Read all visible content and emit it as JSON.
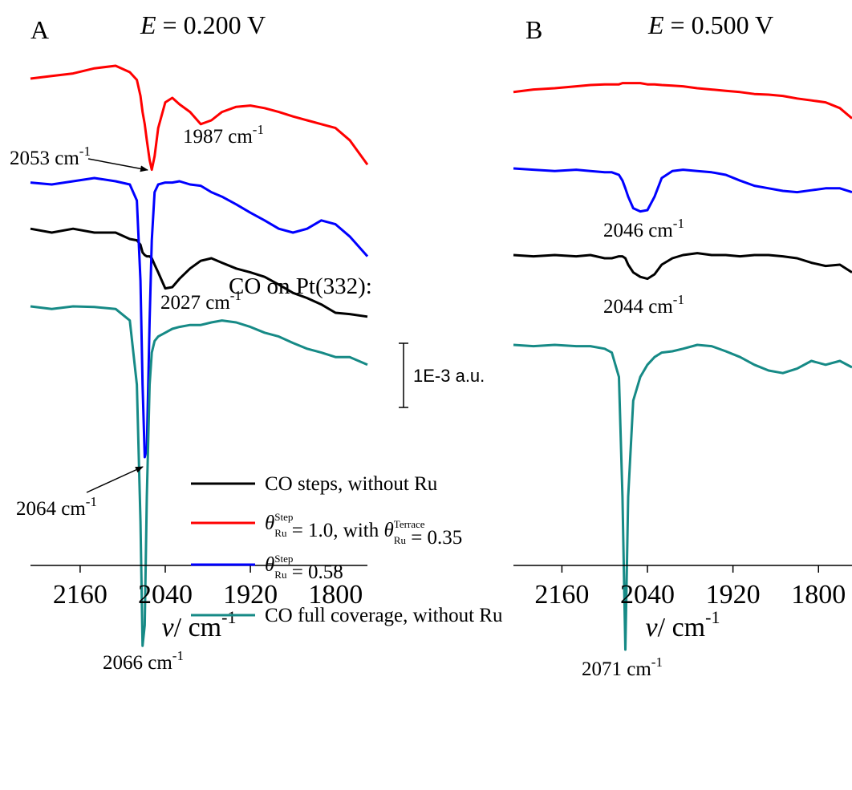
{
  "chart_data": [
    {
      "type": "line",
      "panel": "A",
      "title_symbol": "E",
      "title": "= 0.200 V",
      "x_label_symbol": "ν",
      "x_label": "/ cm",
      "x_label_sup": "-1",
      "x": [
        2230,
        2200,
        2170,
        2140,
        2110,
        2090,
        2080,
        2075,
        2072,
        2069,
        2066,
        2062,
        2059,
        2055,
        2050,
        2040,
        2030,
        2020,
        2005,
        1990,
        1975,
        1960,
        1940,
        1920,
        1900,
        1880,
        1860,
        1840,
        1820,
        1800,
        1780,
        1755
      ],
      "xlim": [
        2230,
        1755
      ],
      "xticks": [
        2160,
        2040,
        1920,
        1800
      ],
      "ylim": [
        0,
        0.0095
      ],
      "series": [
        {
          "name": "CO steps, without Ru",
          "color": "#000000",
          "values": [
            0.00656,
            0.0065,
            0.00656,
            0.0065,
            0.0065,
            0.0064,
            0.00638,
            0.00631,
            0.00619,
            0.00615,
            0.00613,
            0.00613,
            0.0061,
            0.006,
            0.00588,
            0.00563,
            0.00565,
            0.00578,
            0.00594,
            0.00606,
            0.0061,
            0.00603,
            0.00594,
            0.00588,
            0.00581,
            0.00569,
            0.00556,
            0.00548,
            0.00538,
            0.00525,
            0.00523,
            0.00519
          ]
        },
        {
          "name": "θ_Ru^Step = 1.0, with θ_Ru^Terrace = 0.35",
          "color": "#ff0000",
          "values": [
            0.0089,
            0.00894,
            0.00898,
            0.00906,
            0.0091,
            0.009,
            0.00888,
            0.00863,
            0.00838,
            0.00819,
            0.00794,
            0.00763,
            0.00748,
            0.00769,
            0.00813,
            0.00853,
            0.0086,
            0.0085,
            0.00838,
            0.00819,
            0.00825,
            0.00838,
            0.00846,
            0.00848,
            0.00844,
            0.00838,
            0.00831,
            0.00825,
            0.00819,
            0.00813,
            0.00794,
            0.00756
          ]
        },
        {
          "name": "θ_Ru^Step = 0.58",
          "color": "#0000ff",
          "values": [
            0.00728,
            0.00725,
            0.0073,
            0.00735,
            0.0073,
            0.00725,
            0.007,
            0.00575,
            0.00413,
            0.003,
            0.00313,
            0.00513,
            0.00638,
            0.00713,
            0.00725,
            0.00728,
            0.00728,
            0.0073,
            0.00725,
            0.00723,
            0.00713,
            0.00706,
            0.00694,
            0.00681,
            0.00669,
            0.00656,
            0.0065,
            0.00656,
            0.00669,
            0.00663,
            0.00644,
            0.00613
          ]
        },
        {
          "name": "CO full coverage, without Ru",
          "color": "#168a86",
          "values": [
            0.00535,
            0.00531,
            0.00535,
            0.00534,
            0.00531,
            0.00513,
            0.00413,
            0.002,
            6e-05,
            0.00038,
            0.00238,
            0.00413,
            0.00463,
            0.00481,
            0.00488,
            0.00494,
            0.005,
            0.00503,
            0.00506,
            0.00506,
            0.0051,
            0.00513,
            0.0051,
            0.00503,
            0.00494,
            0.00488,
            0.00478,
            0.00469,
            0.00463,
            0.00456,
            0.00456,
            0.00444
          ]
        }
      ],
      "annotations": [
        {
          "text": "1987 cm",
          "sup": "-1"
        },
        {
          "text": "2053 cm",
          "sup": "-1"
        },
        {
          "text": "2027 cm",
          "sup": "-1"
        },
        {
          "text": "2064 cm",
          "sup": "-1"
        },
        {
          "text": "2066 cm",
          "sup": "-1"
        }
      ]
    },
    {
      "type": "line",
      "panel": "B",
      "title_symbol": "E",
      "title": "= 0.500 V",
      "x_label_symbol": "ν",
      "x_label": "/ cm",
      "x_label_sup": "-1",
      "x": [
        2228,
        2200,
        2170,
        2140,
        2120,
        2100,
        2090,
        2080,
        2075,
        2071,
        2067,
        2060,
        2050,
        2040,
        2030,
        2020,
        2005,
        1990,
        1970,
        1950,
        1930,
        1910,
        1890,
        1870,
        1850,
        1830,
        1810,
        1790,
        1770,
        1753
      ],
      "xlim": [
        2228,
        1753
      ],
      "xticks": [
        2160,
        2040,
        1920,
        1800
      ],
      "ylim": [
        0,
        0.0095
      ],
      "series": [
        {
          "name": "CO steps, without Ru",
          "color": "#000000",
          "values": [
            0.00615,
            0.00613,
            0.00615,
            0.00613,
            0.00615,
            0.0061,
            0.0061,
            0.00613,
            0.00613,
            0.0061,
            0.006,
            0.00588,
            0.00581,
            0.00578,
            0.00585,
            0.006,
            0.0061,
            0.00615,
            0.00618,
            0.00615,
            0.00615,
            0.00613,
            0.00615,
            0.00615,
            0.00613,
            0.0061,
            0.00603,
            0.00598,
            0.006,
            0.00588
          ]
        },
        {
          "name": "θ_Ru^Step = 1.0, with θ_Ru^Terrace = 0.35",
          "color": "#ff0000",
          "values": [
            0.00869,
            0.00873,
            0.00875,
            0.00878,
            0.0088,
            0.00881,
            0.00881,
            0.00881,
            0.00883,
            0.00883,
            0.00883,
            0.00883,
            0.00883,
            0.00881,
            0.00881,
            0.0088,
            0.00879,
            0.00878,
            0.00875,
            0.00873,
            0.00871,
            0.00869,
            0.00866,
            0.00865,
            0.00863,
            0.00859,
            0.00856,
            0.00853,
            0.00844,
            0.00828
          ]
        },
        {
          "name": "θ_Ru^Step = 0.58",
          "color": "#0000ff",
          "values": [
            0.0075,
            0.00748,
            0.00746,
            0.00748,
            0.00746,
            0.00744,
            0.00744,
            0.0074,
            0.00731,
            0.00719,
            0.00706,
            0.00688,
            0.00683,
            0.00685,
            0.00706,
            0.00735,
            0.00746,
            0.00748,
            0.00746,
            0.00744,
            0.0074,
            0.00731,
            0.00723,
            0.00719,
            0.00715,
            0.00713,
            0.00716,
            0.00719,
            0.00719,
            0.00713
          ]
        },
        {
          "name": "CO full coverage, without Ru",
          "color": "#168a86",
          "values": [
            0.00475,
            0.00473,
            0.00475,
            0.00473,
            0.00473,
            0.00469,
            0.00463,
            0.00425,
            0.00238,
            0,
            0.00238,
            0.00388,
            0.00425,
            0.00444,
            0.00456,
            0.00463,
            0.00465,
            0.00469,
            0.00475,
            0.00473,
            0.00465,
            0.00456,
            0.00444,
            0.00435,
            0.00431,
            0.00438,
            0.0045,
            0.00444,
            0.0045,
            0.0044
          ]
        }
      ],
      "annotations": [
        {
          "text": "2046 cm",
          "sup": "-1"
        },
        {
          "text": "2044 cm",
          "sup": "-1"
        },
        {
          "text": "2071 cm",
          "sup": "-1"
        }
      ]
    }
  ],
  "legend": {
    "title": "CO on Pt(332):"
  },
  "scale_bar": {
    "value": 0.001,
    "label": "1E-3 a.u."
  }
}
